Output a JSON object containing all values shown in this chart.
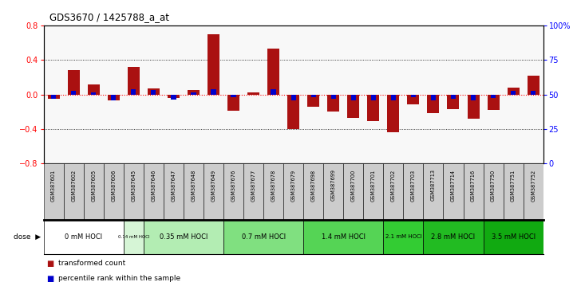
{
  "title": "GDS3670 / 1425788_a_at",
  "samples": [
    "GSM387601",
    "GSM387602",
    "GSM387605",
    "GSM387606",
    "GSM387645",
    "GSM387646",
    "GSM387647",
    "GSM387648",
    "GSM387649",
    "GSM387676",
    "GSM387677",
    "GSM387678",
    "GSM387679",
    "GSM387698",
    "GSM387699",
    "GSM387700",
    "GSM387701",
    "GSM387702",
    "GSM387703",
    "GSM387713",
    "GSM387714",
    "GSM387716",
    "GSM387750",
    "GSM387751",
    "GSM387752"
  ],
  "red_values": [
    -0.05,
    0.28,
    0.12,
    -0.07,
    0.32,
    0.07,
    -0.04,
    0.05,
    0.7,
    -0.19,
    0.02,
    0.53,
    -0.4,
    -0.14,
    -0.2,
    -0.27,
    -0.31,
    -0.44,
    -0.11,
    -0.22,
    -0.17,
    -0.28,
    -0.18,
    0.08,
    0.22
  ],
  "blue_values": [
    -0.048,
    0.038,
    0.022,
    -0.064,
    0.058,
    0.048,
    -0.058,
    0.02,
    0.058,
    -0.03,
    0.0,
    0.058,
    -0.064,
    -0.03,
    -0.048,
    -0.064,
    -0.064,
    -0.064,
    -0.03,
    -0.064,
    -0.048,
    -0.064,
    -0.038,
    0.038,
    0.038
  ],
  "dose_groups": [
    {
      "label": "0 mM HOCl",
      "start": 0,
      "end": 4,
      "color": "#ffffff"
    },
    {
      "label": "0.14 mM HOCl",
      "start": 4,
      "end": 5,
      "color": "#d6f5d6"
    },
    {
      "label": "0.35 mM HOCl",
      "start": 5,
      "end": 9,
      "color": "#b3edb3"
    },
    {
      "label": "0.7 mM HOCl",
      "start": 9,
      "end": 13,
      "color": "#80e080"
    },
    {
      "label": "1.4 mM HOCl",
      "start": 13,
      "end": 17,
      "color": "#55d455"
    },
    {
      "label": "2.1 mM HOCl",
      "start": 17,
      "end": 19,
      "color": "#33cc33"
    },
    {
      "label": "2.8 mM HOCl",
      "start": 19,
      "end": 22,
      "color": "#22bb22"
    },
    {
      "label": "3.5 mM HOCl",
      "start": 22,
      "end": 25,
      "color": "#11aa11"
    }
  ],
  "ylim_left": [
    -0.8,
    0.8
  ],
  "yticks_left": [
    -0.8,
    -0.4,
    0.0,
    0.4,
    0.8
  ],
  "yticks_right_vals": [
    0,
    25,
    50,
    75,
    100
  ],
  "yticks_right_labels": [
    "0",
    "25",
    "50",
    "75",
    "100%"
  ],
  "red_color": "#aa1111",
  "blue_color": "#0000cc",
  "sample_box_color": "#cccccc",
  "legend_red": "transformed count",
  "legend_blue": "percentile rank within the sample",
  "bg_color": "#f8f8f8"
}
